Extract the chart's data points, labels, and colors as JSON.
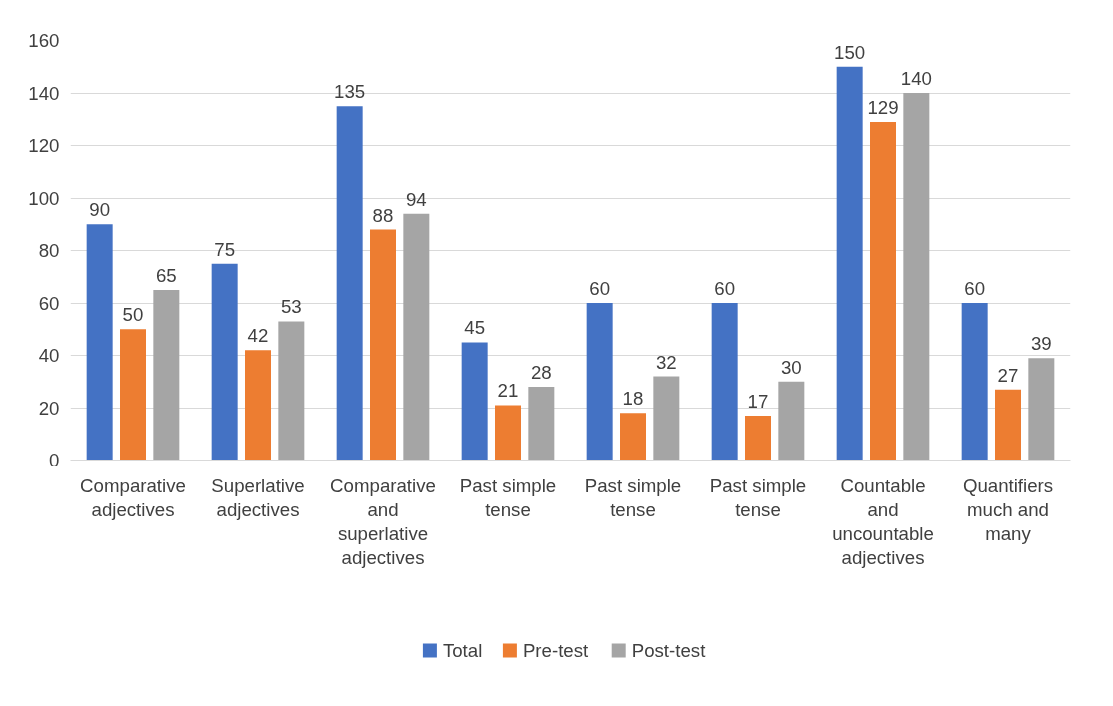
{
  "chart_data": {
    "type": "bar",
    "categories": [
      "Comparative adjectives",
      "Superlative adjectives",
      "Comparative and superlative adjectives",
      "Past simple tense",
      "Past simple tense",
      "Past simple tense",
      "Countable and uncountable adjectives",
      "Quantifiers much and many"
    ],
    "series": [
      {
        "name": "Total",
        "color": "#4472c4",
        "values": [
          90,
          75,
          135,
          45,
          60,
          60,
          150,
          60
        ]
      },
      {
        "name": "Pre-test",
        "color": "#ed7d31",
        "values": [
          50,
          42,
          88,
          21,
          18,
          17,
          129,
          27
        ]
      },
      {
        "name": "Post-test",
        "color": "#a5a5a5",
        "values": [
          65,
          53,
          94,
          28,
          32,
          30,
          140,
          39
        ]
      }
    ],
    "ylim": [
      0,
      160
    ],
    "yticks": [
      0,
      20,
      40,
      60,
      80,
      100,
      120,
      140,
      160
    ],
    "grid": "y",
    "legend": "bottom",
    "data_labels": true
  }
}
